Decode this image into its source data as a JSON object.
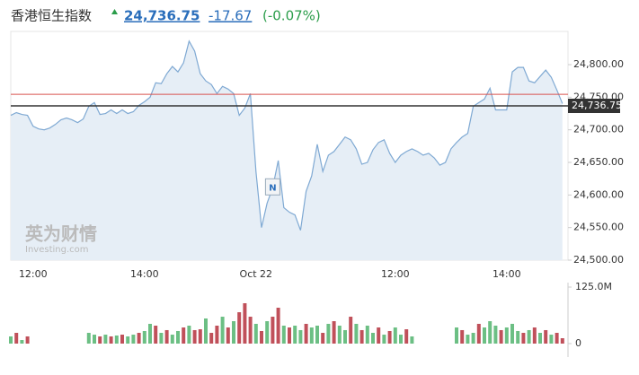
{
  "header": {
    "title": "香港恒生指数",
    "price": "24,736.75",
    "change": "-17.67",
    "change_pct": "(-0.07%)"
  },
  "chart_data": [
    {
      "type": "line",
      "color": "#7fa9d3",
      "area_color": "#e6eef6",
      "grid": false,
      "categories": [
        null,
        null,
        null,
        null,
        "12:00",
        null,
        null,
        null,
        null,
        null,
        null,
        null,
        null,
        null,
        null,
        null,
        null,
        null,
        null,
        null,
        null,
        null,
        null,
        null,
        "14:00",
        null,
        null,
        null,
        null,
        null,
        null,
        null,
        null,
        null,
        null,
        null,
        null,
        null,
        null,
        null,
        null,
        null,
        null,
        null,
        "Oct 22",
        null,
        null,
        null,
        null,
        null,
        null,
        null,
        null,
        null,
        null,
        null,
        null,
        null,
        null,
        null,
        null,
        null,
        null,
        null,
        null,
        null,
        null,
        null,
        null,
        "12:00",
        null,
        null,
        null,
        null,
        null,
        null,
        null,
        null,
        null,
        null,
        null,
        null,
        null,
        null,
        null,
        null,
        null,
        null,
        null,
        "14:00",
        null,
        null,
        null,
        null,
        null,
        null,
        null,
        null,
        null,
        null
      ],
      "values": [
        24722.2,
        24726.4,
        24723.6,
        24722.2,
        24705.6,
        24701.4,
        24700,
        24702.8,
        24708.3,
        24715.3,
        24718.1,
        24715.3,
        24711.1,
        24716.7,
        24736.1,
        24741.7,
        24723.6,
        24725,
        24730.6,
        24725,
        24730.6,
        24725,
        24727.8,
        24737.5,
        24743.1,
        24750,
        24772.2,
        24770.8,
        24786.1,
        24797.2,
        24788.9,
        24802.8,
        24836.1,
        24820.8,
        24786.1,
        24775,
        24769.4,
        24755.6,
        24766.7,
        24762.5,
        24755.6,
        24722.2,
        24733.3,
        24755.6,
        24636.1,
        24550,
        24587.5,
        24611.1,
        24652.8,
        24580.6,
        24573.6,
        24569.4,
        24545.8,
        24605.6,
        24629.2,
        24677.8,
        24636.1,
        24661.1,
        24666.7,
        24677.8,
        24688.9,
        24684.7,
        24670.8,
        24647.2,
        24650,
        24669.4,
        24680.6,
        24684.7,
        24663.9,
        24650,
        24661.1,
        24666.7,
        24670.8,
        24666.7,
        24661.1,
        24663.9,
        24656.9,
        24645.8,
        24650,
        24670.8,
        24680.6,
        24688.9,
        24694.4,
        24736.1,
        24741.7,
        24747.2,
        24763.9,
        24730.6,
        24730.6,
        24730.6,
        24788.9,
        24795.8,
        24795.8,
        24775,
        24772.2,
        24781.9,
        24791.7,
        24780.6,
        24761.1,
        24740.3
      ],
      "ylim": [
        24500,
        24851
      ],
      "yticks": [
        {
          "value": 24500,
          "label": "24,500.00"
        },
        {
          "value": 24550,
          "label": "24,550.00"
        },
        {
          "value": 24600,
          "label": "24,600.00"
        },
        {
          "value": 24650,
          "label": "24,650.00"
        },
        {
          "value": 24700,
          "label": "24,700.00"
        },
        {
          "value": 24750,
          "label": "24,750.00"
        },
        {
          "value": 24800,
          "label": "24,800.00"
        }
      ],
      "ref_line": {
        "value": 24754.42,
        "color": "#d9534f"
      },
      "last_line": {
        "value": 24736.75,
        "label": "24,736.75",
        "color": "#333333"
      },
      "annotation": {
        "text": "N",
        "index": 47
      },
      "watermark": {
        "text": "英为财情",
        "sub": "Investing.com"
      }
    },
    {
      "type": "bar",
      "values": [
        15.9,
        23.8,
        7.9,
        15.9,
        null,
        null,
        null,
        null,
        null,
        null,
        null,
        null,
        null,
        null,
        23.8,
        19.8,
        15.9,
        19.8,
        15.9,
        17.9,
        19.8,
        15.9,
        19.8,
        23.8,
        27.8,
        43.7,
        39.7,
        23.8,
        29.8,
        19.8,
        27.8,
        35.7,
        39.7,
        29.8,
        31.7,
        55.6,
        23.8,
        39.7,
        59.5,
        35.7,
        49.6,
        69.4,
        89.3,
        59.5,
        43.7,
        27.8,
        49.6,
        59.5,
        79.4,
        39.7,
        35.7,
        39.7,
        29.8,
        43.7,
        35.7,
        39.7,
        23.8,
        43.7,
        49.6,
        39.7,
        29.8,
        59.5,
        43.7,
        29.8,
        39.7,
        23.8,
        35.7,
        19.8,
        27.8,
        35.7,
        19.8,
        31.7,
        15.9,
        null,
        null,
        null,
        null,
        null,
        null,
        null,
        35.7,
        29.8,
        19.8,
        23.8,
        43.7,
        35.7,
        49.6,
        39.7,
        29.8,
        35.7,
        43.7,
        27.8,
        23.8,
        29.8,
        35.7,
        23.8,
        29.8,
        19.8,
        23.8,
        11.9
      ],
      "colors": [
        "#6cbf84",
        "#c0505a",
        "#6cbf84",
        "#c0505a",
        null,
        null,
        null,
        null,
        null,
        null,
        null,
        null,
        null,
        null,
        "#6cbf84",
        "#6cbf84",
        "#c0505a",
        "#6cbf84",
        "#c0505a",
        "#6cbf84",
        "#c0505a",
        "#6cbf84",
        "#6cbf84",
        "#c0505a",
        "#6cbf84",
        "#6cbf84",
        "#c0505a",
        "#6cbf84",
        "#c0505a",
        "#6cbf84",
        "#6cbf84",
        "#c0505a",
        "#6cbf84",
        "#c0505a",
        "#c0505a",
        "#6cbf84",
        "#c0505a",
        "#c0505a",
        "#6cbf84",
        "#c0505a",
        "#6cbf84",
        "#c0505a",
        "#c0505a",
        "#c0505a",
        "#6cbf84",
        "#c0505a",
        "#6cbf84",
        "#c0505a",
        "#c0505a",
        "#6cbf84",
        "#c0505a",
        "#6cbf84",
        "#6cbf84",
        "#c0505a",
        "#6cbf84",
        "#6cbf84",
        "#c0505a",
        "#6cbf84",
        "#c0505a",
        "#6cbf84",
        "#6cbf84",
        "#c0505a",
        "#6cbf84",
        "#c0505a",
        "#6cbf84",
        "#6cbf84",
        "#c0505a",
        "#6cbf84",
        "#c0505a",
        "#6cbf84",
        "#6cbf84",
        "#c0505a",
        "#6cbf84",
        null,
        null,
        null,
        null,
        null,
        null,
        null,
        "#6cbf84",
        "#c0505a",
        "#6cbf84",
        "#6cbf84",
        "#c0505a",
        "#6cbf84",
        "#6cbf84",
        "#6cbf84",
        "#c0505a",
        "#6cbf84",
        "#6cbf84",
        "#6cbf84",
        "#c0505a",
        "#6cbf84",
        "#c0505a",
        "#6cbf84",
        "#c0505a",
        "#6cbf84",
        "#c0505a",
        "#c0505a"
      ],
      "ylim": [
        0,
        129
      ],
      "yticks": [
        0,
        {
          "value": 125,
          "label": "125.0M"
        }
      ]
    }
  ]
}
